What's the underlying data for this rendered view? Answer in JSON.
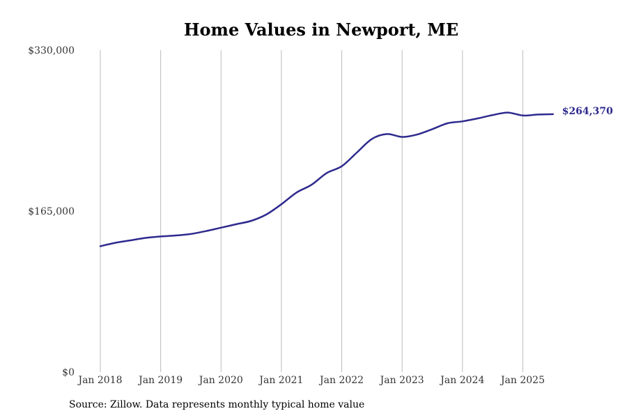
{
  "chart_data": {
    "type": "line",
    "title": "Home Values in Newport, ME",
    "xlabel": "",
    "ylabel": "",
    "ylim": [
      0,
      330000
    ],
    "y_ticks": [
      0,
      165000,
      330000
    ],
    "y_tick_labels": [
      "$0",
      "$165,000",
      "$330,000"
    ],
    "x_range": [
      "2018-01",
      "2025-07"
    ],
    "x_ticks": [
      "2018-01",
      "2019-01",
      "2020-01",
      "2021-01",
      "2022-01",
      "2023-01",
      "2024-01",
      "2025-01"
    ],
    "x_tick_labels": [
      "Jan 2018",
      "Jan 2019",
      "Jan 2020",
      "Jan 2021",
      "Jan 2022",
      "Jan 2023",
      "Jan 2024",
      "Jan 2025"
    ],
    "grid": "vertical",
    "line_color": "#2e2a8e",
    "grid_color": "#bbbbbb",
    "end_label": "$264,370",
    "series": [
      {
        "points": [
          [
            "2018-01",
            129000
          ],
          [
            "2018-04",
            132500
          ],
          [
            "2018-07",
            135000
          ],
          [
            "2018-10",
            137500
          ],
          [
            "2019-01",
            139000
          ],
          [
            "2019-04",
            140000
          ],
          [
            "2019-07",
            141500
          ],
          [
            "2019-10",
            144500
          ],
          [
            "2020-01",
            148000
          ],
          [
            "2020-04",
            151500
          ],
          [
            "2020-07",
            155000
          ],
          [
            "2020-10",
            161500
          ],
          [
            "2021-01",
            172000
          ],
          [
            "2021-04",
            184000
          ],
          [
            "2021-07",
            192000
          ],
          [
            "2021-10",
            204000
          ],
          [
            "2022-01",
            211000
          ],
          [
            "2022-04",
            225000
          ],
          [
            "2022-07",
            239000
          ],
          [
            "2022-10",
            244000
          ],
          [
            "2023-01",
            241000
          ],
          [
            "2023-04",
            243500
          ],
          [
            "2023-07",
            249000
          ],
          [
            "2023-10",
            255000
          ],
          [
            "2024-01",
            257000
          ],
          [
            "2024-04",
            260000
          ],
          [
            "2024-07",
            263500
          ],
          [
            "2024-10",
            266000
          ],
          [
            "2025-01",
            263000
          ],
          [
            "2025-04",
            264000
          ],
          [
            "2025-07",
            264370
          ]
        ]
      }
    ]
  },
  "footer": {
    "source": "Source: Zillow. Data represents monthly typical home value"
  }
}
